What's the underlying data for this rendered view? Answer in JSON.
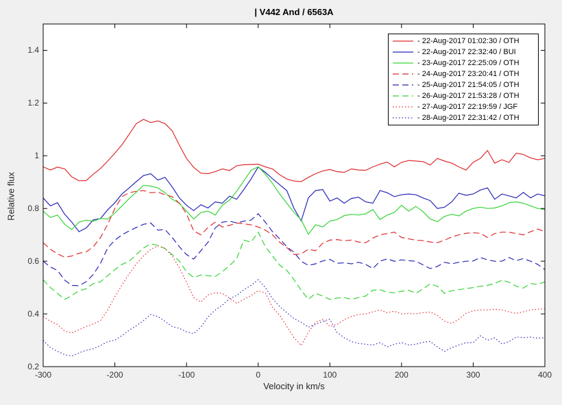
{
  "title": "| V442 And / 6563A",
  "axes": {
    "xlabel": "Velocity in km/s",
    "ylabel": "Relative flux",
    "xtick_labels": [
      "-300",
      "-200",
      "-100",
      "0",
      "100",
      "200",
      "300",
      "400"
    ],
    "ytick_labels": [
      "0.2",
      "0.4",
      "0.6",
      "0.8",
      "1",
      "1.2",
      "1.4"
    ]
  },
  "colors": {
    "red": "#df2b2b",
    "blue": "#2626b8",
    "green": "#35d435",
    "background": "#f0f0f0",
    "plot_background": "#ffffff",
    "axis": "#000000"
  },
  "chart_data": {
    "type": "line",
    "title": "| V442 And / 6563A",
    "xlabel": "Velocity in km/s",
    "ylabel": "Relative flux",
    "xlim": [
      -300,
      400
    ],
    "ylim": [
      0.2,
      1.5
    ],
    "xticks": [
      -300,
      -200,
      -100,
      0,
      100,
      200,
      300,
      400
    ],
    "yticks": [
      0.2,
      0.4,
      0.6,
      0.8,
      1.0,
      1.2,
      1.4
    ],
    "grid": false,
    "legend_position": "top-right",
    "x": [
      -300,
      -290,
      -280,
      -270,
      -260,
      -250,
      -240,
      -230,
      -220,
      -210,
      -200,
      -190,
      -180,
      -170,
      -160,
      -150,
      -140,
      -130,
      -120,
      -110,
      -100,
      -90,
      -80,
      -70,
      -60,
      -50,
      -40,
      -30,
      -20,
      -10,
      0,
      10,
      20,
      30,
      40,
      50,
      60,
      70,
      80,
      90,
      100,
      110,
      120,
      130,
      140,
      150,
      160,
      170,
      180,
      190,
      200,
      210,
      220,
      230,
      240,
      250,
      260,
      270,
      280,
      290,
      300,
      310,
      320,
      330,
      340,
      350,
      360,
      370,
      380,
      390,
      400
    ],
    "series": [
      {
        "name": "- 22-Aug-2017 01:02:30 / OTH",
        "color": "#df2b2b",
        "style": "solid",
        "values": [
          0.958,
          0.946,
          0.957,
          0.95,
          0.92,
          0.905,
          0.906,
          0.93,
          0.952,
          0.98,
          1.01,
          1.042,
          1.082,
          1.122,
          1.138,
          1.126,
          1.132,
          1.122,
          1.095,
          1.04,
          0.99,
          0.956,
          0.934,
          0.932,
          0.94,
          0.95,
          0.944,
          0.962,
          0.966,
          0.967,
          0.968,
          0.958,
          0.95,
          0.928,
          0.912,
          0.904,
          0.902,
          0.918,
          0.932,
          0.942,
          0.948,
          0.94,
          0.937,
          0.95,
          0.946,
          0.945,
          0.958,
          0.968,
          0.976,
          0.958,
          0.975,
          0.982,
          0.98,
          0.978,
          0.965,
          0.99,
          0.98,
          0.972,
          0.958,
          0.946,
          0.975,
          0.99,
          1.02,
          0.972,
          0.985,
          0.975,
          1.01,
          1.005,
          0.992,
          0.985,
          0.99
        ]
      },
      {
        "name": "- 22-Aug-2017 22:32:40 / BUI",
        "color": "#2626b8",
        "style": "solid",
        "values": [
          0.84,
          0.81,
          0.822,
          0.778,
          0.748,
          0.712,
          0.726,
          0.757,
          0.762,
          0.795,
          0.822,
          0.855,
          0.878,
          0.902,
          0.925,
          0.932,
          0.908,
          0.918,
          0.882,
          0.84,
          0.812,
          0.792,
          0.814,
          0.802,
          0.825,
          0.82,
          0.847,
          0.835,
          0.872,
          0.912,
          0.957,
          0.937,
          0.913,
          0.89,
          0.868,
          0.8,
          0.753,
          0.84,
          0.868,
          0.872,
          0.828,
          0.84,
          0.82,
          0.838,
          0.843,
          0.825,
          0.82,
          0.868,
          0.86,
          0.845,
          0.852,
          0.855,
          0.852,
          0.84,
          0.83,
          0.8,
          0.805,
          0.825,
          0.858,
          0.85,
          0.855,
          0.87,
          0.878,
          0.835,
          0.855,
          0.848,
          0.84,
          0.861,
          0.84,
          0.855,
          0.848
        ]
      },
      {
        "name": "- 23-Aug-2017 22:25:09 / OTH",
        "color": "#35d435",
        "style": "solid",
        "values": [
          0.79,
          0.766,
          0.775,
          0.74,
          0.72,
          0.748,
          0.756,
          0.752,
          0.762,
          0.76,
          0.783,
          0.81,
          0.838,
          0.862,
          0.888,
          0.885,
          0.878,
          0.86,
          0.835,
          0.82,
          0.79,
          0.76,
          0.785,
          0.79,
          0.775,
          0.812,
          0.832,
          0.865,
          0.905,
          0.945,
          0.958,
          0.93,
          0.895,
          0.855,
          0.82,
          0.785,
          0.757,
          0.702,
          0.738,
          0.73,
          0.752,
          0.758,
          0.773,
          0.778,
          0.775,
          0.78,
          0.796,
          0.758,
          0.775,
          0.785,
          0.812,
          0.79,
          0.808,
          0.788,
          0.76,
          0.75,
          0.77,
          0.778,
          0.772,
          0.79,
          0.8,
          0.805,
          0.8,
          0.802,
          0.81,
          0.822,
          0.825,
          0.82,
          0.81,
          0.8,
          0.796
        ]
      },
      {
        "name": "- 24-Aug-2017 23:20:41 / OTH",
        "color": "#df2b2b",
        "style": "dashed",
        "values": [
          0.67,
          0.645,
          0.628,
          0.615,
          0.62,
          0.63,
          0.635,
          0.655,
          0.69,
          0.74,
          0.8,
          0.845,
          0.86,
          0.865,
          0.868,
          0.86,
          0.862,
          0.852,
          0.845,
          0.82,
          0.78,
          0.715,
          0.7,
          0.728,
          0.748,
          0.73,
          0.736,
          0.745,
          0.742,
          0.738,
          0.73,
          0.718,
          0.7,
          0.672,
          0.652,
          0.625,
          0.628,
          0.645,
          0.64,
          0.668,
          0.68,
          0.682,
          0.678,
          0.68,
          0.673,
          0.67,
          0.688,
          0.7,
          0.705,
          0.71,
          0.69,
          0.685,
          0.68,
          0.678,
          0.673,
          0.67,
          0.68,
          0.692,
          0.7,
          0.706,
          0.708,
          0.706,
          0.69,
          0.705,
          0.71,
          0.71,
          0.705,
          0.7,
          0.712,
          0.722,
          0.712
        ]
      },
      {
        "name": "- 25-Aug-2017 21:54:05 / OTH",
        "color": "#2626b8",
        "style": "dashed",
        "values": [
          0.6,
          0.578,
          0.565,
          0.528,
          0.508,
          0.507,
          0.522,
          0.55,
          0.592,
          0.65,
          0.68,
          0.7,
          0.715,
          0.728,
          0.74,
          0.745,
          0.718,
          0.72,
          0.69,
          0.655,
          0.625,
          0.608,
          0.64,
          0.672,
          0.726,
          0.748,
          0.752,
          0.745,
          0.752,
          0.756,
          0.78,
          0.748,
          0.712,
          0.685,
          0.655,
          0.634,
          0.6,
          0.584,
          0.59,
          0.601,
          0.607,
          0.592,
          0.594,
          0.59,
          0.596,
          0.588,
          0.572,
          0.6,
          0.609,
          0.6,
          0.605,
          0.602,
          0.6,
          0.586,
          0.572,
          0.58,
          0.596,
          0.59,
          0.596,
          0.6,
          0.601,
          0.614,
          0.605,
          0.6,
          0.6,
          0.614,
          0.602,
          0.61,
          0.6,
          0.588,
          0.568
        ]
      },
      {
        "name": "- 26-Aug-2017 21:53:28 / OTH",
        "color": "#35d435",
        "style": "dashed",
        "values": [
          0.53,
          0.5,
          0.478,
          0.455,
          0.47,
          0.488,
          0.495,
          0.515,
          0.522,
          0.545,
          0.568,
          0.588,
          0.6,
          0.625,
          0.65,
          0.666,
          0.66,
          0.648,
          0.625,
          0.6,
          0.56,
          0.538,
          0.548,
          0.545,
          0.542,
          0.56,
          0.583,
          0.61,
          0.68,
          0.672,
          0.71,
          0.655,
          0.62,
          0.585,
          0.565,
          0.53,
          0.49,
          0.455,
          0.478,
          0.468,
          0.455,
          0.46,
          0.462,
          0.455,
          0.462,
          0.468,
          0.49,
          0.492,
          0.482,
          0.48,
          0.486,
          0.49,
          0.478,
          0.495,
          0.514,
          0.505,
          0.478,
          0.488,
          0.492,
          0.496,
          0.5,
          0.505,
          0.508,
          0.515,
          0.528,
          0.52,
          0.505,
          0.498,
          0.515,
          0.512,
          0.522
        ]
      },
      {
        "name": "- 27-Aug-2017 22:19:59 / JGF",
        "color": "#df2b2b",
        "style": "dotted",
        "values": [
          0.39,
          0.372,
          0.36,
          0.335,
          0.328,
          0.34,
          0.352,
          0.362,
          0.375,
          0.415,
          0.465,
          0.51,
          0.552,
          0.59,
          0.62,
          0.645,
          0.658,
          0.648,
          0.62,
          0.575,
          0.52,
          0.462,
          0.445,
          0.472,
          0.48,
          0.478,
          0.46,
          0.44,
          0.455,
          0.47,
          0.488,
          0.48,
          0.425,
          0.395,
          0.352,
          0.31,
          0.28,
          0.33,
          0.368,
          0.38,
          0.352,
          0.36,
          0.378,
          0.39,
          0.398,
          0.4,
          0.408,
          0.415,
          0.405,
          0.41,
          0.4,
          0.402,
          0.4,
          0.405,
          0.407,
          0.395,
          0.372,
          0.364,
          0.38,
          0.402,
          0.412,
          0.415,
          0.415,
          0.418,
          0.415,
          0.408,
          0.402,
          0.408,
          0.415,
          0.418,
          0.42
        ]
      },
      {
        "name": "- 28-Aug-2017 22:31:42 / OTH",
        "color": "#2626b8",
        "style": "dotted",
        "values": [
          0.3,
          0.272,
          0.258,
          0.245,
          0.24,
          0.252,
          0.262,
          0.268,
          0.28,
          0.295,
          0.3,
          0.318,
          0.338,
          0.355,
          0.375,
          0.398,
          0.39,
          0.372,
          0.352,
          0.345,
          0.332,
          0.325,
          0.35,
          0.388,
          0.415,
          0.433,
          0.458,
          0.47,
          0.492,
          0.508,
          0.53,
          0.5,
          0.458,
          0.428,
          0.405,
          0.382,
          0.368,
          0.35,
          0.36,
          0.372,
          0.38,
          0.33,
          0.31,
          0.295,
          0.288,
          0.285,
          0.282,
          0.291,
          0.275,
          0.285,
          0.291,
          0.282,
          0.285,
          0.292,
          0.296,
          0.275,
          0.258,
          0.272,
          0.282,
          0.291,
          0.291,
          0.317,
          0.3,
          0.309,
          0.286,
          0.295,
          0.312,
          0.31,
          0.312,
          0.308,
          0.31
        ]
      }
    ]
  }
}
